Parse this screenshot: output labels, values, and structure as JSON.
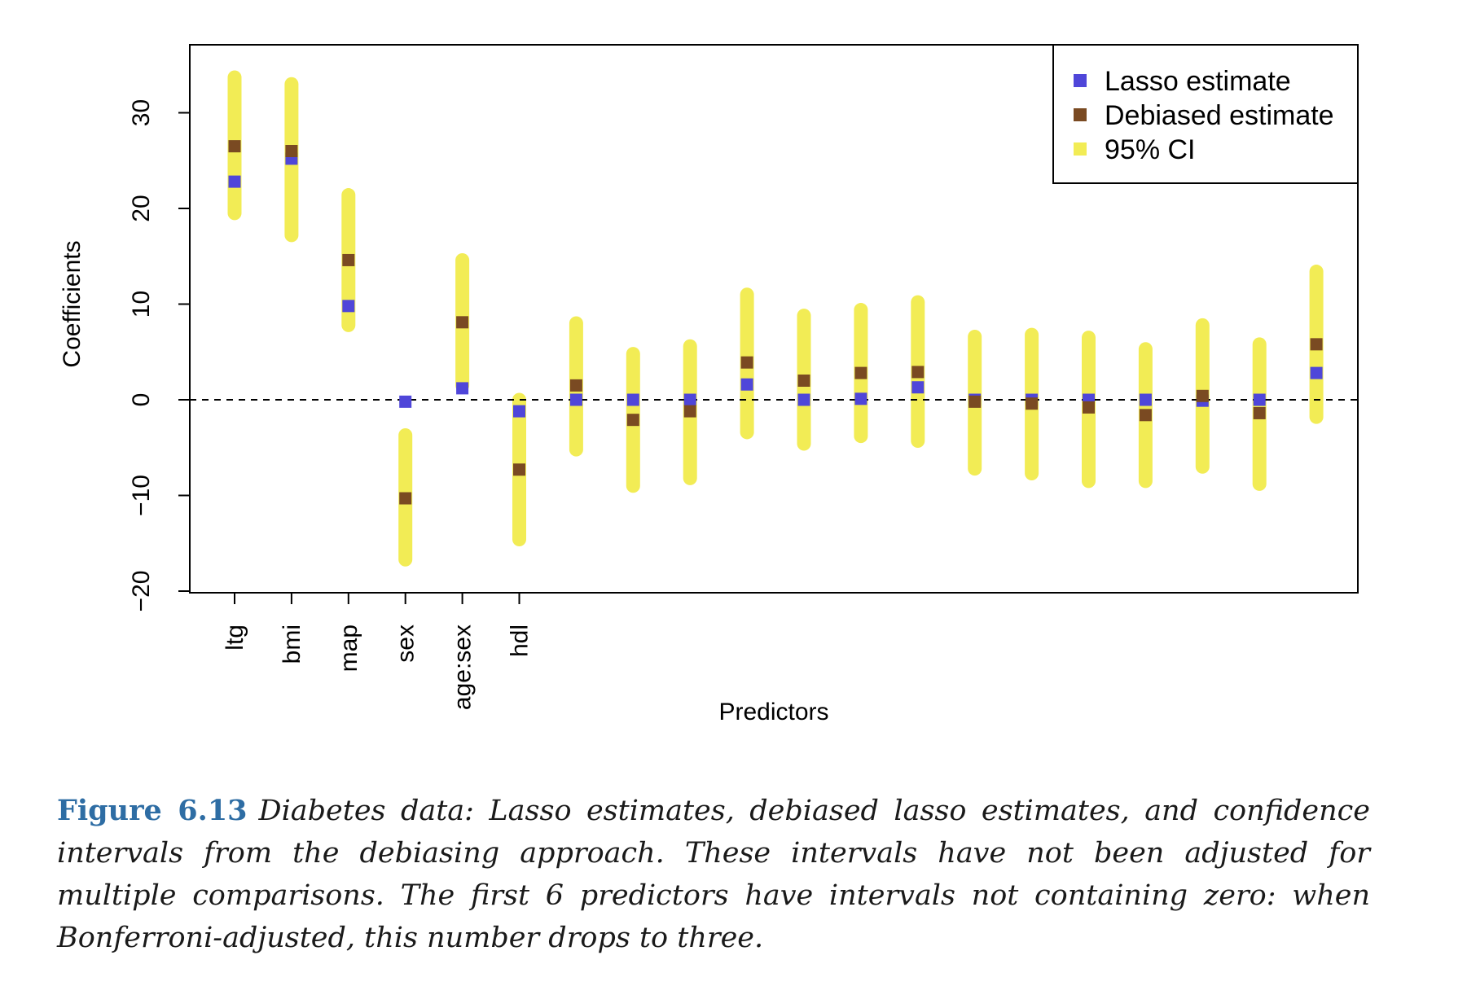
{
  "chart_data": {
    "type": "scatter",
    "xlabel": "Predictors",
    "ylabel": "Coefficients",
    "ylim": [
      -20,
      37
    ],
    "yticks": [
      -20,
      -10,
      0,
      10,
      20,
      30
    ],
    "reference_line": 0,
    "legend": {
      "placement": "top-right",
      "entries": [
        {
          "label": "Lasso estimate",
          "color": "#4f46d9"
        },
        {
          "label": "Debiased estimate",
          "color": "#7a4a22"
        },
        {
          "label": "95% CI",
          "color": "#f2ec55"
        }
      ]
    },
    "categories": [
      "ltg",
      "bmi",
      "map",
      "sex",
      "age:sex",
      "hdl",
      "",
      "",
      "",
      "",
      "",
      "",
      "",
      "",
      "",
      "",
      "",
      "",
      "",
      ""
    ],
    "series": [
      {
        "name": "Lasso estimate",
        "values": [
          22.8,
          25.2,
          9.8,
          -0.2,
          1.2,
          -1.2,
          0,
          0,
          0,
          1.6,
          0,
          0.1,
          1.3,
          0,
          0,
          0,
          0,
          -0.1,
          0,
          2.8
        ]
      },
      {
        "name": "Debiased estimate",
        "values": [
          26.5,
          26,
          14.6,
          -10.3,
          8.1,
          -7.3,
          1.5,
          -2.1,
          -1.2,
          3.9,
          2,
          2.8,
          2.9,
          -0.2,
          -0.4,
          -0.8,
          -1.6,
          0.4,
          -1.4,
          5.8
        ]
      },
      {
        "name": "95% CI",
        "lower": [
          19.5,
          17.2,
          7.8,
          -16.7,
          1.5,
          -14.6,
          -5.2,
          -9,
          -8.2,
          -3.4,
          -4.6,
          -3.8,
          -4.3,
          -7.2,
          -7.7,
          -8.5,
          -8.5,
          -7,
          -8.8,
          -1.8
        ],
        "upper": [
          33.7,
          33,
          21.4,
          -3.7,
          14.6,
          0,
          8,
          4.8,
          5.6,
          11,
          8.8,
          9.4,
          10.2,
          6.6,
          6.8,
          6.5,
          5.3,
          7.8,
          5.8,
          13.4
        ]
      }
    ]
  },
  "caption": {
    "label": "Figure 6.13",
    "text": "Diabetes data: Lasso estimates, debiased lasso estimates, and confidence intervals from the debiasing approach. These intervals have not been adjusted for multiple comparisons. The first 6 predictors have intervals not containing zero: when Bonferroni-adjusted, this number drops to three."
  }
}
